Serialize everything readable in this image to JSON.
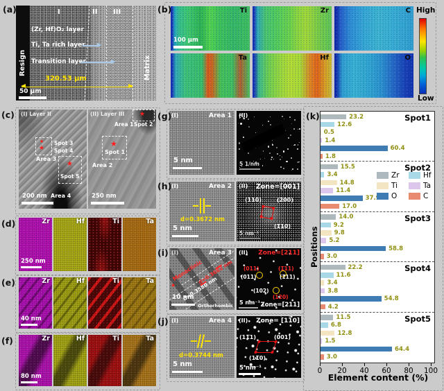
{
  "panels": {
    "a": {
      "label": "(a)",
      "resin": "Resign",
      "matrix": "Matrix",
      "regions": [
        "I",
        "II",
        "III"
      ],
      "layer1": "(Zr, Hf)O₂ layer",
      "layer2": "Ti, Ta rich layer",
      "layer3": "Transition layer",
      "measurement": "320.53 μm",
      "scalebar": "50 μm"
    },
    "b": {
      "label": "(b)",
      "maps": [
        "Ti",
        "Zr",
        "C",
        "Ta",
        "Hf",
        "O"
      ],
      "scalebar": "100 μm",
      "colorbar_high": "High",
      "colorbar_low": "Low"
    },
    "c": {
      "label": "(c)",
      "img1": {
        "title": "(I) Layer II",
        "spot3": "Spot 3",
        "spot4": "Spot 4",
        "area3": "Area 3",
        "spot5": "Spot 5",
        "area4": "Area 4",
        "scalebar": "200 nm"
      },
      "img2": {
        "title": "(II) Layer III",
        "area1": "Area 1",
        "spot2": "Spot 2",
        "spot1": "Spot 1",
        "area2": "Area 2",
        "scalebar": "250 nm"
      }
    },
    "g": {
      "label": "(g)",
      "sub1": "(I)",
      "area": "Area 1",
      "scalebar": "5 nm",
      "sub2": "(II)",
      "diff_scalebar": "5 1/nm"
    },
    "h": {
      "label": "(h)",
      "sub1": "(I)",
      "area": "Area 2",
      "d": "d=0.3672 nm",
      "scalebar": "5 nm",
      "sub2": "(II)",
      "zone": "Zone=[001]",
      "spot_a": "(110)",
      "spot_b": "(200)",
      "spot_c": "(1̅10)",
      "diff_scalebar": "5 nm⁻¹"
    },
    "i": {
      "label": "(i)",
      "sub1": "(I)",
      "area": "Area 3",
      "phase1": "Monoclinic",
      "d1": "d=0.3682 nm",
      "d2": "d=0.3580 nm",
      "phase2": "Orthorhombic",
      "scalebar": "10 nm",
      "sub2": "(II)",
      "zone_top": "Zone=[211]",
      "zone_bottom": "Zone=[211]",
      "spot_r1": "(011)",
      "spot_w1": "(011)",
      "spot_r2": "(1̅11)",
      "spot_w2": "(111)",
      "spot_w3": "(102)",
      "spot_r3": "(120)",
      "diff_scalebar": "5 nm⁻¹"
    },
    "j": {
      "label": "(j)",
      "sub1": "(I)",
      "area": "Area 4",
      "d": "d=0.3744 nm",
      "scalebar": "5 nm",
      "sub2": "(II)",
      "zone": "Zone= [11̅0]",
      "spot_a": "(11̅1)",
      "spot_b": "(001)",
      "spot_c": "(11̅0)",
      "diff_scalebar": "5 nm⁻¹"
    },
    "k": {
      "label": "(k)"
    }
  },
  "maps_rows": [
    {
      "id": "d",
      "label": "(d)",
      "elements": [
        "Zr",
        "Hf",
        "Ti",
        "Ta"
      ],
      "scalebar": "250 nm"
    },
    {
      "id": "e",
      "label": "(e)",
      "elements": [
        "Zr",
        "Hf",
        "Ti",
        "Ta"
      ],
      "scalebar": "40 nm"
    },
    {
      "id": "f",
      "label": "(f)",
      "elements": [
        "Zr",
        "Hf",
        "Ti",
        "Ta"
      ],
      "scalebar": "80 nm"
    }
  ],
  "chart_data": {
    "type": "bar",
    "orientation": "horizontal",
    "xlabel": "Element content (%)",
    "ylabel": "Positions",
    "xlim": [
      0,
      100
    ],
    "xticks": [
      0,
      20,
      40,
      60,
      80,
      100
    ],
    "groups": [
      "Spot1",
      "Spot2",
      "Spot3",
      "Spot4",
      "Spot5"
    ],
    "bar_order_top_to_bottom": [
      "Zr",
      "Hf",
      "Ti",
      "Ta",
      "O",
      "C"
    ],
    "series": [
      {
        "name": "Zr",
        "color": "#aeb9bd",
        "values": [
          23.2,
          15.5,
          14.0,
          22.2,
          11.5
        ]
      },
      {
        "name": "Hf",
        "color": "#a9d8e6",
        "values": [
          12.6,
          3.4,
          9.2,
          11.6,
          6.8
        ]
      },
      {
        "name": "Ti",
        "color": "#f4e5c2",
        "values": [
          0.5,
          14.8,
          9.8,
          3.4,
          12.8
        ]
      },
      {
        "name": "Ta",
        "color": "#ddc6ec",
        "values": [
          1.4,
          11.4,
          5.2,
          3.8,
          1.5
        ]
      },
      {
        "name": "O",
        "color": "#3e7cb3",
        "values": [
          60.4,
          37.9,
          58.8,
          54.8,
          64.4
        ]
      },
      {
        "name": "C",
        "color": "#e78a70",
        "values": [
          1.8,
          17.0,
          3.0,
          4.2,
          3.0
        ]
      }
    ],
    "value_label_color": "#8f8f12",
    "legend": {
      "rows": [
        [
          "Zr",
          "Hf"
        ],
        [
          "Ti",
          "Ta"
        ],
        [
          "O",
          "C"
        ]
      ],
      "position": "center-right-inside"
    },
    "grid": false
  }
}
